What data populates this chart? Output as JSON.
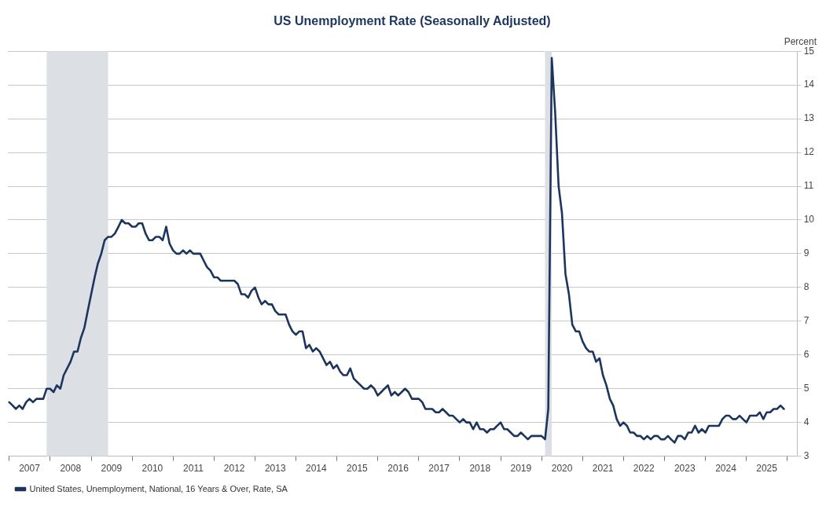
{
  "chart_data": {
    "type": "line",
    "title": "US Unemployment Rate (Seasonally Adjusted)",
    "ylabel": "Percent",
    "x": [
      "2007-01",
      "2007-02",
      "2007-03",
      "2007-04",
      "2007-05",
      "2007-06",
      "2007-07",
      "2007-08",
      "2007-09",
      "2007-10",
      "2007-11",
      "2007-12",
      "2008-01",
      "2008-02",
      "2008-03",
      "2008-04",
      "2008-05",
      "2008-06",
      "2008-07",
      "2008-08",
      "2008-09",
      "2008-10",
      "2008-11",
      "2008-12",
      "2009-01",
      "2009-02",
      "2009-03",
      "2009-04",
      "2009-05",
      "2009-06",
      "2009-07",
      "2009-08",
      "2009-09",
      "2009-10",
      "2009-11",
      "2009-12",
      "2010-01",
      "2010-02",
      "2010-03",
      "2010-04",
      "2010-05",
      "2010-06",
      "2010-07",
      "2010-08",
      "2010-09",
      "2010-10",
      "2010-11",
      "2010-12",
      "2011-01",
      "2011-02",
      "2011-03",
      "2011-04",
      "2011-05",
      "2011-06",
      "2011-07",
      "2011-08",
      "2011-09",
      "2011-10",
      "2011-11",
      "2011-12",
      "2012-01",
      "2012-02",
      "2012-03",
      "2012-04",
      "2012-05",
      "2012-06",
      "2012-07",
      "2012-08",
      "2012-09",
      "2012-10",
      "2012-11",
      "2012-12",
      "2013-01",
      "2013-02",
      "2013-03",
      "2013-04",
      "2013-05",
      "2013-06",
      "2013-07",
      "2013-08",
      "2013-09",
      "2013-10",
      "2013-11",
      "2013-12",
      "2014-01",
      "2014-02",
      "2014-03",
      "2014-04",
      "2014-05",
      "2014-06",
      "2014-07",
      "2014-08",
      "2014-09",
      "2014-10",
      "2014-11",
      "2014-12",
      "2015-01",
      "2015-02",
      "2015-03",
      "2015-04",
      "2015-05",
      "2015-06",
      "2015-07",
      "2015-08",
      "2015-09",
      "2015-10",
      "2015-11",
      "2015-12",
      "2016-01",
      "2016-02",
      "2016-03",
      "2016-04",
      "2016-05",
      "2016-06",
      "2016-07",
      "2016-08",
      "2016-09",
      "2016-10",
      "2016-11",
      "2016-12",
      "2017-01",
      "2017-02",
      "2017-03",
      "2017-04",
      "2017-05",
      "2017-06",
      "2017-07",
      "2017-08",
      "2017-09",
      "2017-10",
      "2017-11",
      "2017-12",
      "2018-01",
      "2018-02",
      "2018-03",
      "2018-04",
      "2018-05",
      "2018-06",
      "2018-07",
      "2018-08",
      "2018-09",
      "2018-10",
      "2018-11",
      "2018-12",
      "2019-01",
      "2019-02",
      "2019-03",
      "2019-04",
      "2019-05",
      "2019-06",
      "2019-07",
      "2019-08",
      "2019-09",
      "2019-10",
      "2019-11",
      "2019-12",
      "2020-01",
      "2020-02",
      "2020-03",
      "2020-04",
      "2020-05",
      "2020-06",
      "2020-07",
      "2020-08",
      "2020-09",
      "2020-10",
      "2020-11",
      "2020-12",
      "2021-01",
      "2021-02",
      "2021-03",
      "2021-04",
      "2021-05",
      "2021-06",
      "2021-07",
      "2021-08",
      "2021-09",
      "2021-10",
      "2021-11",
      "2021-12",
      "2022-01",
      "2022-02",
      "2022-03",
      "2022-04",
      "2022-05",
      "2022-06",
      "2022-07",
      "2022-08",
      "2022-09",
      "2022-10",
      "2022-11",
      "2022-12",
      "2023-01",
      "2023-02",
      "2023-03",
      "2023-04",
      "2023-05",
      "2023-06",
      "2023-07",
      "2023-08",
      "2023-09",
      "2023-10",
      "2023-11",
      "2023-12",
      "2024-01",
      "2024-02",
      "2024-03",
      "2024-04",
      "2024-05",
      "2024-06",
      "2024-07",
      "2024-08",
      "2024-09",
      "2024-10",
      "2024-11",
      "2024-12",
      "2025-01",
      "2025-02",
      "2025-03",
      "2025-04",
      "2025-05",
      "2025-06",
      "2025-07",
      "2025-08",
      "2025-09",
      "2025-10",
      "2025-11",
      "2025-12"
    ],
    "series": [
      {
        "name": "United States, Unemployment, National, 16 Years & Over, Rate, SA",
        "color": "#1c355e",
        "values": [
          4.6,
          4.5,
          4.4,
          4.5,
          4.4,
          4.6,
          4.7,
          4.6,
          4.7,
          4.7,
          4.7,
          5.0,
          5.0,
          4.9,
          5.1,
          5.0,
          5.4,
          5.6,
          5.8,
          6.1,
          6.1,
          6.5,
          6.8,
          7.3,
          7.8,
          8.3,
          8.7,
          9.0,
          9.4,
          9.5,
          9.5,
          9.6,
          9.8,
          10.0,
          9.9,
          9.9,
          9.8,
          9.8,
          9.9,
          9.9,
          9.6,
          9.4,
          9.4,
          9.5,
          9.5,
          9.4,
          9.8,
          9.3,
          9.1,
          9.0,
          9.0,
          9.1,
          9.0,
          9.1,
          9.0,
          9.0,
          9.0,
          8.8,
          8.6,
          8.5,
          8.3,
          8.3,
          8.2,
          8.2,
          8.2,
          8.2,
          8.2,
          8.1,
          7.8,
          7.8,
          7.7,
          7.9,
          8.0,
          7.7,
          7.5,
          7.6,
          7.5,
          7.5,
          7.3,
          7.2,
          7.2,
          7.2,
          6.9,
          6.7,
          6.6,
          6.7,
          6.7,
          6.2,
          6.3,
          6.1,
          6.2,
          6.1,
          5.9,
          5.7,
          5.8,
          5.6,
          5.7,
          5.5,
          5.4,
          5.4,
          5.6,
          5.3,
          5.2,
          5.1,
          5.0,
          5.0,
          5.1,
          5.0,
          4.8,
          4.9,
          5.0,
          5.1,
          4.8,
          4.9,
          4.8,
          4.9,
          5.0,
          4.9,
          4.7,
          4.7,
          4.7,
          4.6,
          4.4,
          4.4,
          4.4,
          4.3,
          4.3,
          4.4,
          4.3,
          4.2,
          4.2,
          4.1,
          4.0,
          4.1,
          4.0,
          4.0,
          3.8,
          4.0,
          3.8,
          3.8,
          3.7,
          3.8,
          3.8,
          3.9,
          4.0,
          3.8,
          3.8,
          3.7,
          3.6,
          3.6,
          3.7,
          3.6,
          3.5,
          3.6,
          3.6,
          3.6,
          3.6,
          3.5,
          4.4,
          14.8,
          13.2,
          11.0,
          10.2,
          8.4,
          7.8,
          6.9,
          6.7,
          6.7,
          6.4,
          6.2,
          6.1,
          6.1,
          5.8,
          5.9,
          5.4,
          5.1,
          4.7,
          4.5,
          4.1,
          3.9,
          4.0,
          3.9,
          3.7,
          3.7,
          3.6,
          3.6,
          3.5,
          3.6,
          3.5,
          3.6,
          3.6,
          3.5,
          3.5,
          3.6,
          3.5,
          3.4,
          3.6,
          3.6,
          3.5,
          3.7,
          3.7,
          3.9,
          3.7,
          3.8,
          3.7,
          3.9,
          3.9,
          3.9,
          3.9,
          4.1,
          4.2,
          4.2,
          4.1,
          4.1,
          4.2,
          4.1,
          4.0,
          4.2,
          4.2,
          4.2,
          4.3,
          4.1,
          4.3,
          4.3,
          4.4,
          4.4,
          4.5,
          4.4
        ]
      }
    ],
    "xlim": [
      "2006-12-20",
      "2026-04-01"
    ],
    "xticks": [
      {
        "value": "2007-01-01",
        "label": null
      },
      {
        "value": "2007-07-01",
        "label": "2007"
      },
      {
        "value": "2008-01-01",
        "label": null
      },
      {
        "value": "2008-07-01",
        "label": "2008"
      },
      {
        "value": "2009-01-01",
        "label": null
      },
      {
        "value": "2009-07-01",
        "label": "2009"
      },
      {
        "value": "2010-01-01",
        "label": null
      },
      {
        "value": "2010-07-01",
        "label": "2010"
      },
      {
        "value": "2011-01-01",
        "label": null
      },
      {
        "value": "2011-07-01",
        "label": "2011"
      },
      {
        "value": "2012-01-01",
        "label": null
      },
      {
        "value": "2012-07-01",
        "label": "2012"
      },
      {
        "value": "2013-01-01",
        "label": null
      },
      {
        "value": "2013-07-01",
        "label": "2013"
      },
      {
        "value": "2014-01-01",
        "label": null
      },
      {
        "value": "2014-07-01",
        "label": "2014"
      },
      {
        "value": "2015-01-01",
        "label": null
      },
      {
        "value": "2015-07-01",
        "label": "2015"
      },
      {
        "value": "2016-01-01",
        "label": null
      },
      {
        "value": "2016-07-01",
        "label": "2016"
      },
      {
        "value": "2017-01-01",
        "label": null
      },
      {
        "value": "2017-07-01",
        "label": "2017"
      },
      {
        "value": "2018-01-01",
        "label": null
      },
      {
        "value": "2018-07-01",
        "label": "2018"
      },
      {
        "value": "2019-01-01",
        "label": null
      },
      {
        "value": "2019-07-01",
        "label": "2019"
      },
      {
        "value": "2020-01-01",
        "label": null
      },
      {
        "value": "2020-07-01",
        "label": "2020"
      },
      {
        "value": "2021-01-01",
        "label": null
      },
      {
        "value": "2021-07-01",
        "label": "2021"
      },
      {
        "value": "2022-01-01",
        "label": null
      },
      {
        "value": "2022-07-01",
        "label": "2022"
      },
      {
        "value": "2023-01-01",
        "label": null
      },
      {
        "value": "2023-07-01",
        "label": "2023"
      },
      {
        "value": "2024-01-01",
        "label": null
      },
      {
        "value": "2024-07-01",
        "label": "2024"
      },
      {
        "value": "2025-01-01",
        "label": null
      },
      {
        "value": "2025-07-01",
        "label": "2025"
      },
      {
        "value": "2026-01-01",
        "label": null
      }
    ],
    "ylim": [
      3,
      15
    ],
    "yticks": [
      3,
      4,
      5,
      6,
      7,
      8,
      9,
      10,
      11,
      12,
      13,
      14,
      15
    ],
    "grid": "y",
    "legend": "bottom left",
    "marker": "none",
    "line_style": "solid",
    "bands": [
      {
        "axis": "x",
        "from": "2007-12-01",
        "to": "2009-06-01",
        "color": "#dcdfe4"
      },
      {
        "axis": "x",
        "from": "2020-02-01",
        "to": "2020-04-01",
        "color": "#dcdfe4"
      }
    ]
  }
}
